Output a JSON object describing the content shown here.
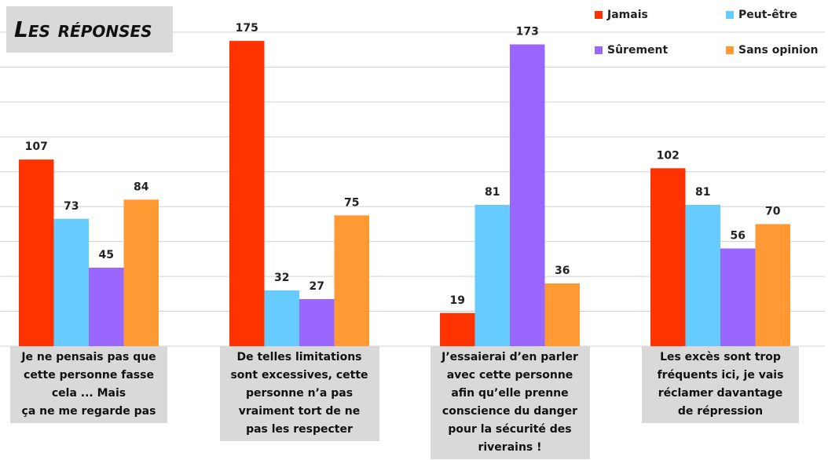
{
  "chart_data": {
    "type": "bar",
    "title": "Les réponses",
    "categories": [
      "Je ne pensais pas que\ncette personne fasse\ncela ... Mais\nça ne me regarde pas",
      "De telles limitations\nsont excessives, cette\npersonne n’a pas\nvraiment tort de ne\npas les respecter",
      "J’essaierai d’en parler\navec cette personne\nafin qu’elle prenne\nconscience du danger\npour la sécurité des\nriverains !",
      "Les excès sont trop\nfréquents ici, je vais\nréclamer davantage\nde répression"
    ],
    "series": [
      {
        "name": "Jamais",
        "color": "#ff3300",
        "values": [
          107,
          175,
          19,
          102
        ]
      },
      {
        "name": "Peut-être",
        "color": "#66ccff",
        "values": [
          73,
          32,
          81,
          81
        ]
      },
      {
        "name": "Sûrement",
        "color": "#9966ff",
        "values": [
          45,
          27,
          173,
          56
        ]
      },
      {
        "name": "Sans opinion",
        "color": "#ff9933",
        "values": [
          84,
          75,
          36,
          70
        ]
      }
    ],
    "ylim": [
      0,
      180
    ],
    "yticks": [
      0,
      20,
      40,
      60,
      80,
      100,
      120,
      140,
      160,
      180
    ],
    "grid": true
  }
}
